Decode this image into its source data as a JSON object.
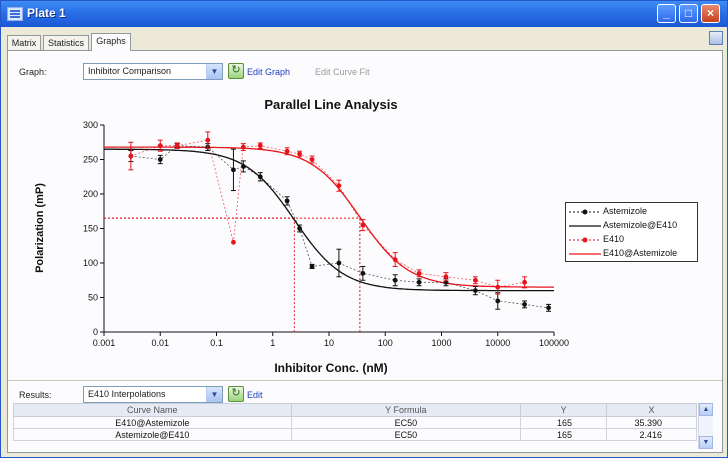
{
  "window": {
    "title": "Plate 1"
  },
  "tabs": [
    {
      "label": "Matrix"
    },
    {
      "label": "Statistics"
    },
    {
      "label": "Graphs",
      "active": true
    }
  ],
  "graph_toolbar": {
    "graph_label": "Graph:",
    "graph_select_value": "Inhibitor Comparison",
    "edit_graph": "Edit Graph",
    "edit_curve_fit": "Edit Curve Fit"
  },
  "results_toolbar": {
    "results_label": "Results:",
    "results_select_value": "E410 Interpolations",
    "edit": "Edit"
  },
  "results_table": {
    "columns": [
      "Curve Name",
      "Y Formula",
      "Y",
      "X"
    ],
    "rows": [
      [
        "E410@Astemizole",
        "EC50",
        "165",
        "35.390"
      ],
      [
        "Astemizole@E410",
        "EC50",
        "165",
        "2.416"
      ]
    ]
  },
  "colors": {
    "black_series": "#111111",
    "red_series": "#e8141b",
    "titlebar": "#2a6fe6"
  },
  "chart_data": {
    "type": "scatter",
    "title": "Parallel Line Analysis",
    "xlabel": "Inhibitor Conc. (nM)",
    "ylabel": "Polarization (mP)",
    "x_scale": "log",
    "xlim": [
      0.001,
      100000
    ],
    "ylim": [
      0,
      300
    ],
    "x_ticks": [
      0.001,
      0.01,
      0.1,
      1,
      10,
      100,
      1000,
      10000,
      100000
    ],
    "x_tick_labels": [
      "0.001",
      "0.01",
      "0.1",
      "1",
      "10",
      "100",
      "1000",
      "10000",
      "100000"
    ],
    "y_ticks": [
      0,
      50,
      100,
      150,
      200,
      250,
      300
    ],
    "y_tick_labels": [
      "0",
      "50",
      "100",
      "150",
      "200",
      "250",
      "300"
    ],
    "legend_position": "right",
    "legend": [
      "Astemizole",
      "Astemizole@E410",
      "E410",
      "E410@Astemizole"
    ],
    "curves": [
      {
        "name": "Astemizole@E410",
        "color": "#111111",
        "top": 265,
        "bottom": 60,
        "ec50": 2.416,
        "hill": 1.0
      },
      {
        "name": "E410@Astemizole",
        "color": "#e8141b",
        "top": 268,
        "bottom": 65,
        "ec50": 35.39,
        "hill": 1.0
      }
    ],
    "series": [
      {
        "name": "Astemizole",
        "color": "#111111",
        "points": [
          {
            "x": 0.003,
            "y": 255,
            "err": 8
          },
          {
            "x": 0.01,
            "y": 250,
            "err": 6
          },
          {
            "x": 0.02,
            "y": 270,
            "err": 3
          },
          {
            "x": 0.07,
            "y": 268,
            "err": 5
          },
          {
            "x": 0.2,
            "y": 235,
            "err": 30
          },
          {
            "x": 0.3,
            "y": 240,
            "err": 8
          },
          {
            "x": 0.6,
            "y": 225,
            "err": 6
          },
          {
            "x": 1.8,
            "y": 190,
            "err": 6
          },
          {
            "x": 3,
            "y": 150,
            "err": 5
          },
          {
            "x": 5,
            "y": 95,
            "err": 3
          },
          {
            "x": 15,
            "y": 100,
            "err": 20
          },
          {
            "x": 40,
            "y": 85,
            "err": 10
          },
          {
            "x": 150,
            "y": 75,
            "err": 8
          },
          {
            "x": 400,
            "y": 72,
            "err": 5
          },
          {
            "x": 1200,
            "y": 72,
            "err": 5
          },
          {
            "x": 4000,
            "y": 60,
            "err": 6
          },
          {
            "x": 10000,
            "y": 45,
            "err": 12
          },
          {
            "x": 30000,
            "y": 40,
            "err": 5
          },
          {
            "x": 80000,
            "y": 35,
            "err": 5
          }
        ]
      },
      {
        "name": "E410",
        "color": "#e8141b",
        "points": [
          {
            "x": 0.003,
            "y": 255,
            "err": 20
          },
          {
            "x": 0.01,
            "y": 270,
            "err": 8
          },
          {
            "x": 0.02,
            "y": 270,
            "err": 4
          },
          {
            "x": 0.07,
            "y": 278,
            "err": 12
          },
          {
            "x": 0.2,
            "y": 130,
            "err": 0
          },
          {
            "x": 0.3,
            "y": 268,
            "err": 5
          },
          {
            "x": 0.6,
            "y": 270,
            "err": 4
          },
          {
            "x": 1.8,
            "y": 262,
            "err": 5
          },
          {
            "x": 3,
            "y": 258,
            "err": 4
          },
          {
            "x": 5,
            "y": 250,
            "err": 5
          },
          {
            "x": 15,
            "y": 212,
            "err": 8
          },
          {
            "x": 40,
            "y": 155,
            "err": 8
          },
          {
            "x": 150,
            "y": 105,
            "err": 10
          },
          {
            "x": 400,
            "y": 85,
            "err": 5
          },
          {
            "x": 1200,
            "y": 80,
            "err": 6
          },
          {
            "x": 4000,
            "y": 75,
            "err": 5
          },
          {
            "x": 10000,
            "y": 65,
            "err": 10
          },
          {
            "x": 30000,
            "y": 72,
            "err": 8
          }
        ]
      }
    ],
    "annotations": [
      {
        "type": "interpolation",
        "y": 165,
        "x": 2.416,
        "color": "#e8141b"
      },
      {
        "type": "interpolation",
        "y": 165,
        "x": 35.39,
        "color": "#e8141b"
      }
    ]
  }
}
